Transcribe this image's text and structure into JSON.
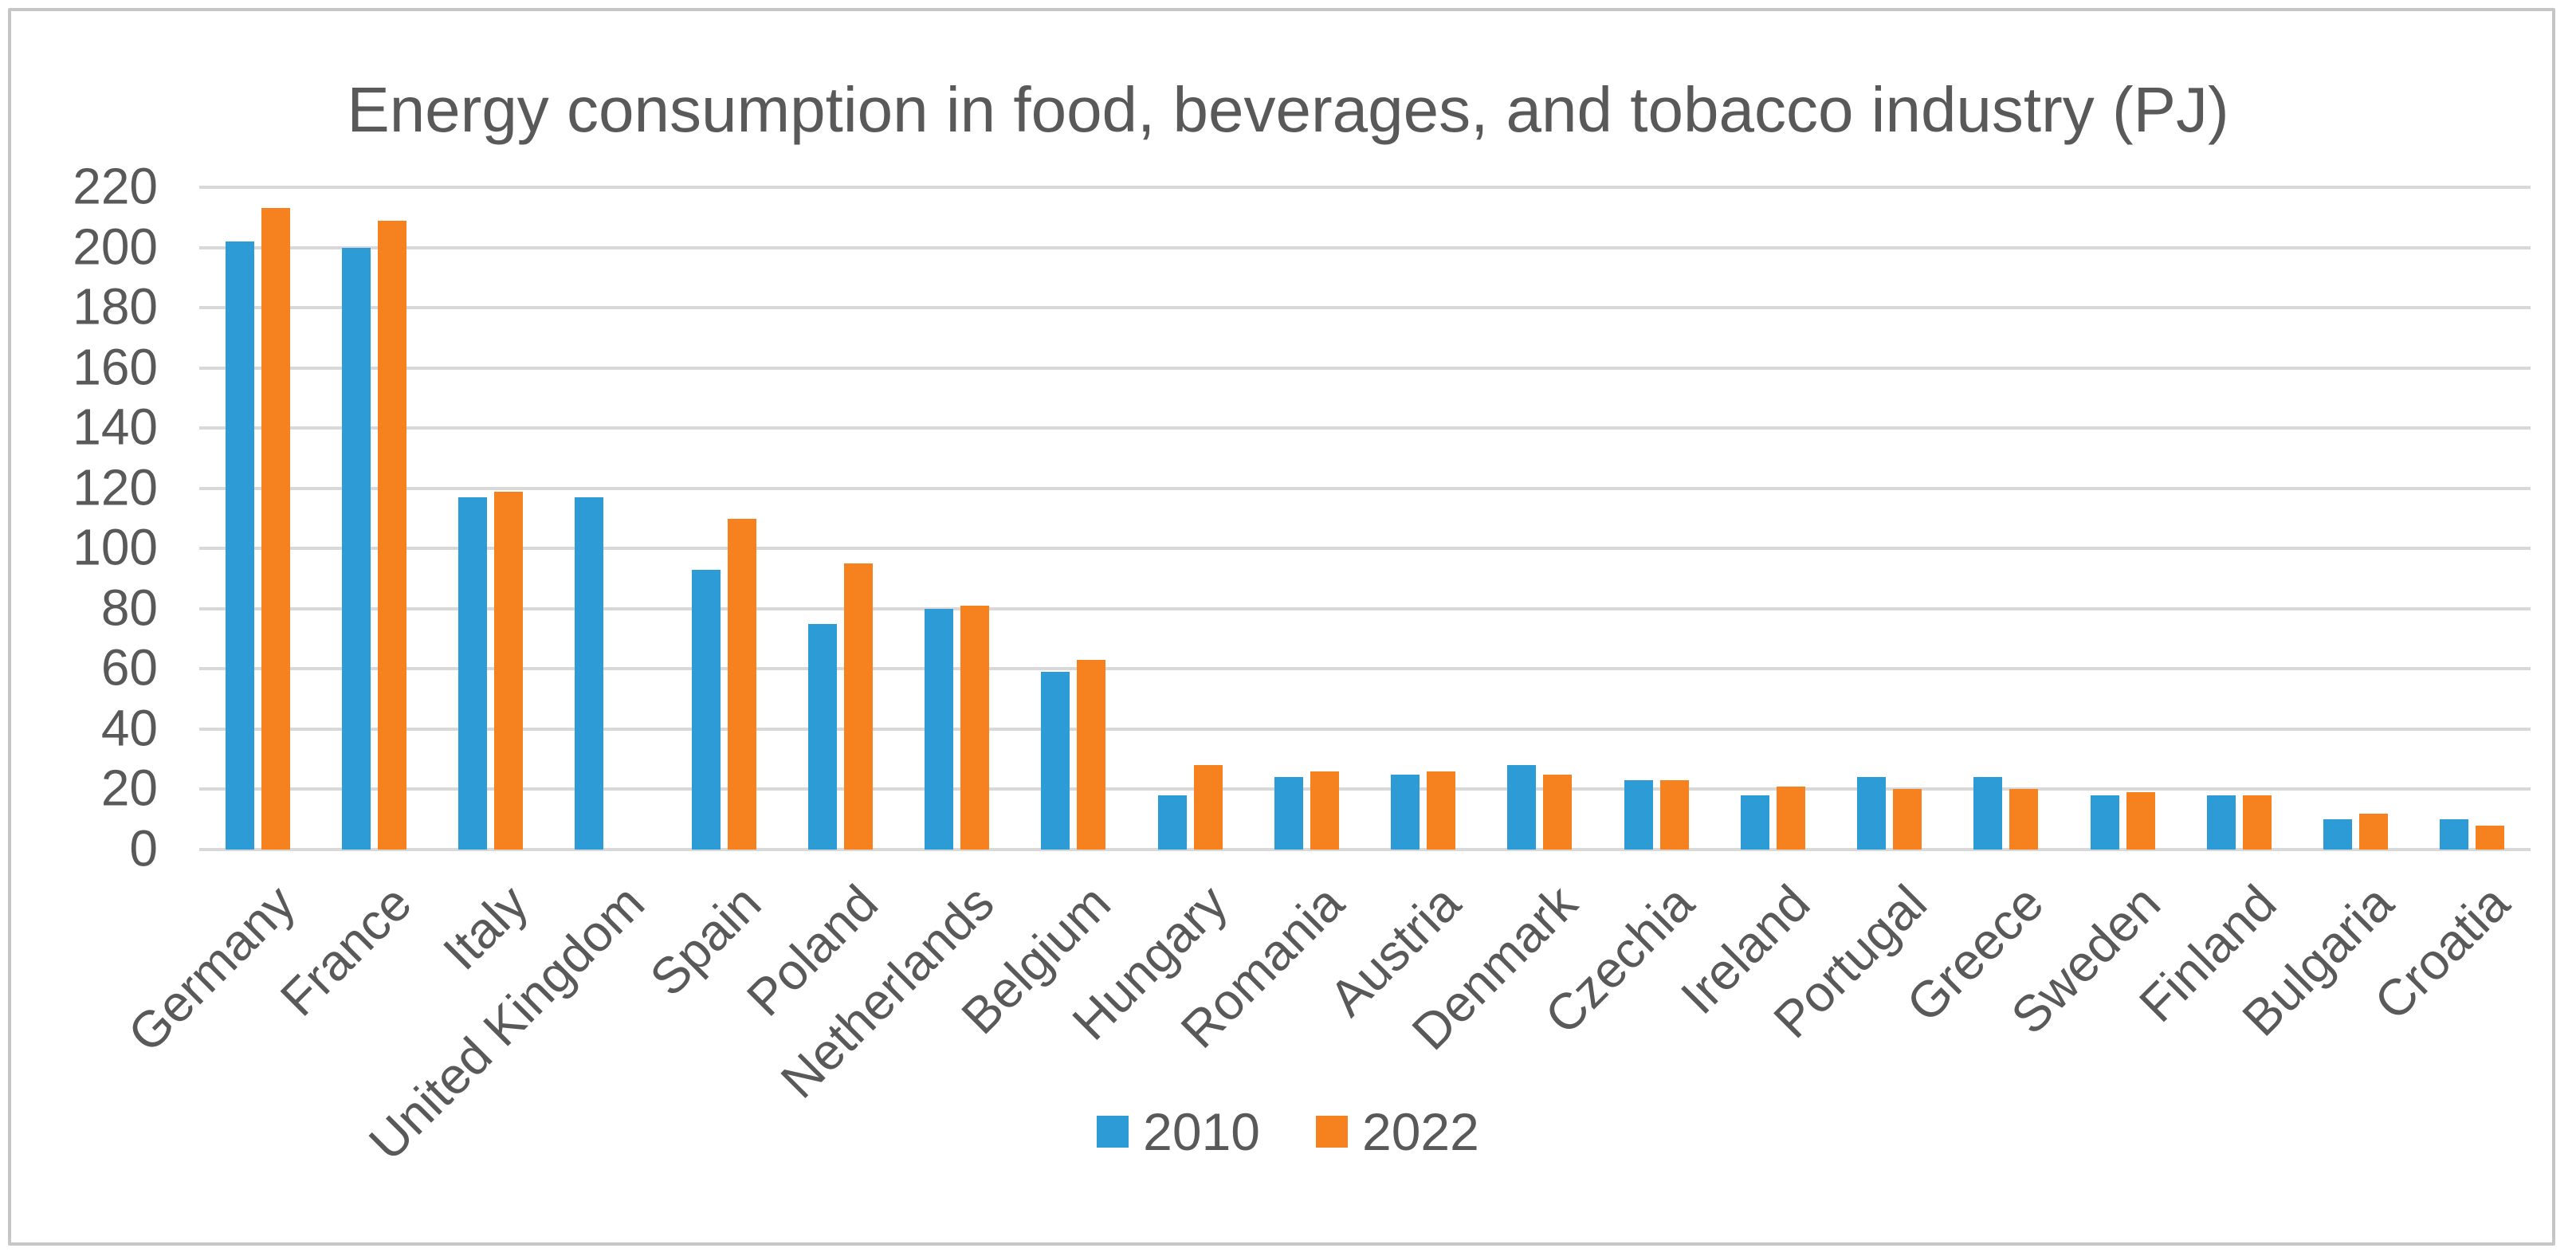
{
  "title": "Energy consumption in food, beverages, and tobacco industry (PJ)",
  "colors": {
    "series_2010": "#2d9bd5",
    "series_2022": "#f6821f",
    "gridline": "#d8d8d8",
    "text": "#595959",
    "frame_border": "#c6c6c6",
    "background": "#ffffff"
  },
  "chart_data": {
    "type": "bar",
    "title": "Energy consumption in food, beverages, and tobacco industry (PJ)",
    "xlabel": "",
    "ylabel": "",
    "grid": true,
    "legend_position": "bottom",
    "y_axis": {
      "min": 0,
      "max": 220,
      "step": 20,
      "ticks": [
        220,
        200,
        180,
        160,
        140,
        120,
        100,
        80,
        60,
        40,
        20,
        0
      ]
    },
    "categories": [
      "Germany",
      "France",
      "Italy",
      "United Kingdom",
      "Spain",
      "Poland",
      "Netherlands",
      "Belgium",
      "Hungary",
      "Romania",
      "Austria",
      "Denmark",
      "Czechia",
      "Ireland",
      "Portugal",
      "Greece",
      "Sweden",
      "Finland",
      "Bulgaria",
      "Croatia"
    ],
    "series": [
      {
        "name": "2010",
        "color": "#2d9bd5",
        "values": [
          202,
          200,
          117,
          117,
          93,
          75,
          80,
          59,
          18,
          24,
          25,
          28,
          23,
          18,
          24,
          24,
          18,
          18,
          10,
          10
        ]
      },
      {
        "name": "2022",
        "color": "#f6821f",
        "values": [
          213,
          209,
          119,
          null,
          110,
          95,
          81,
          63,
          28,
          26,
          26,
          25,
          23,
          21,
          20,
          20,
          19,
          18,
          12,
          8
        ]
      }
    ]
  }
}
